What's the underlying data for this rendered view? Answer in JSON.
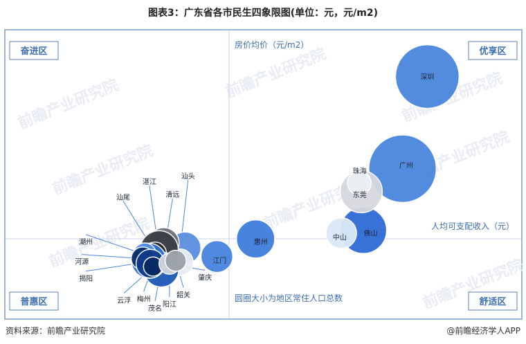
{
  "title": "图表3：广东省各市民生四象限图(单位：元，元/m2)",
  "source": "资料来源：前瞻产业研究院",
  "brand": "@前瞻经济学人APP",
  "watermark": "前瞻产业研究院",
  "chart_data": {
    "type": "scatter",
    "subtype": "bubble-quadrant",
    "x_axis_label": "人均可支配收入（元）",
    "y_axis_label": "房价均价（元/m2）",
    "size_note": "圆圈大小为地区常住人口总数",
    "quadrant_labels": {
      "top_left": "奋进区",
      "top_right": "优享区",
      "bottom_left": "普惠区",
      "bottom_right": "舒适区"
    },
    "grid": false,
    "colors": {
      "frame": "#5a82bd",
      "divider": "#c9d5e6",
      "label_text": "#3f6fb0",
      "bubble_blue": "#4a86dd"
    },
    "points": [
      {
        "city": "深圳",
        "x": 0.818,
        "y": 0.84,
        "size": 1.0,
        "color": "#4a86dd"
      },
      {
        "city": "广州",
        "x": 0.77,
        "y": 0.52,
        "size": 1.06,
        "color": "#4a86dd"
      },
      {
        "city": "佛山",
        "x": 0.694,
        "y": 0.306,
        "size": 0.73,
        "color": "#2e6bd6"
      },
      {
        "city": "东莞",
        "x": 0.69,
        "y": 0.44,
        "size": 0.66,
        "color": "#d6d9de"
      },
      {
        "city": "珠海",
        "x": 0.686,
        "y": 0.47,
        "size": 0.37,
        "color": "#eceff3"
      },
      {
        "city": "中山",
        "x": 0.651,
        "y": 0.296,
        "size": 0.48,
        "color": "#dde8f7"
      },
      {
        "city": "惠州",
        "x": 0.485,
        "y": 0.276,
        "size": 0.6,
        "color": "#3f7ddc"
      },
      {
        "city": "江门",
        "x": 0.41,
        "y": 0.215,
        "size": 0.5,
        "color": "#4684df"
      },
      {
        "city": "汕头",
        "x": 0.348,
        "y": 0.245,
        "size": 0.5,
        "color": "#5c8fe0"
      },
      {
        "city": "肇庆",
        "x": 0.338,
        "y": 0.195,
        "size": 0.42,
        "color": "#e9edf2"
      },
      {
        "city": "清远",
        "x": 0.307,
        "y": 0.262,
        "size": 0.48,
        "color": "#6e7178"
      },
      {
        "city": "湛江",
        "x": 0.298,
        "y": 0.238,
        "size": 0.6,
        "color": "#3c3f45"
      },
      {
        "city": "汕尾",
        "x": 0.29,
        "y": 0.225,
        "size": 0.36,
        "color": "#23262c"
      },
      {
        "city": "茂名",
        "x": 0.302,
        "y": 0.17,
        "size": 0.55,
        "color": "#1e58b5"
      },
      {
        "city": "揭阳",
        "x": 0.278,
        "y": 0.2,
        "size": 0.55,
        "color": "#2f70d6"
      },
      {
        "city": "潮州",
        "x": 0.27,
        "y": 0.222,
        "size": 0.36,
        "color": "#5590e5"
      },
      {
        "city": "河源",
        "x": 0.266,
        "y": 0.208,
        "size": 0.36,
        "color": "#0a2e6c"
      },
      {
        "city": "梅州",
        "x": 0.281,
        "y": 0.19,
        "size": 0.45,
        "color": "#0f3b89"
      },
      {
        "city": "云浮",
        "x": 0.286,
        "y": 0.18,
        "size": 0.3,
        "color": "#0a2a63"
      },
      {
        "city": "阳江",
        "x": 0.318,
        "y": 0.19,
        "size": 0.33,
        "color": "#cfd5de"
      },
      {
        "city": "韶关",
        "x": 0.33,
        "y": 0.2,
        "size": 0.33,
        "color": "#9aa1ab"
      }
    ],
    "labels": [
      {
        "city": "深圳",
        "x": 0.818,
        "y": 0.84,
        "inside": true
      },
      {
        "city": "广州",
        "x": 0.777,
        "y": 0.532,
        "inside": true
      },
      {
        "city": "佛山",
        "x": 0.708,
        "y": 0.297,
        "inside": true
      },
      {
        "city": "东莞",
        "x": 0.687,
        "y": 0.43,
        "inside": true
      },
      {
        "city": "珠海",
        "x": 0.687,
        "y": 0.513,
        "inside": true
      },
      {
        "city": "中山",
        "x": 0.648,
        "y": 0.283,
        "inside": true
      },
      {
        "city": "惠州",
        "x": 0.495,
        "y": 0.267,
        "inside": true
      },
      {
        "city": "江门",
        "x": 0.415,
        "y": 0.202,
        "inside": true
      },
      {
        "city": "汕头",
        "x": 0.354,
        "y": 0.495,
        "px": 0.34,
        "py": 0.26
      },
      {
        "city": "湛江",
        "x": 0.279,
        "y": 0.476,
        "px": 0.296,
        "py": 0.25
      },
      {
        "city": "清远",
        "x": 0.324,
        "y": 0.431,
        "px": 0.31,
        "py": 0.26
      },
      {
        "city": "汕尾",
        "x": 0.228,
        "y": 0.422,
        "px": 0.288,
        "py": 0.235
      },
      {
        "city": "潮州",
        "x": 0.156,
        "y": 0.267,
        "px": 0.265,
        "py": 0.225
      },
      {
        "city": "河源",
        "x": 0.148,
        "y": 0.198,
        "px": 0.262,
        "py": 0.208
      },
      {
        "city": "揭阳",
        "x": 0.156,
        "y": 0.14,
        "px": 0.27,
        "py": 0.195
      },
      {
        "city": "云浮",
        "x": 0.23,
        "y": 0.064,
        "px": 0.283,
        "py": 0.172
      },
      {
        "city": "梅州",
        "x": 0.268,
        "y": 0.069,
        "px": 0.284,
        "py": 0.175
      },
      {
        "city": "茂名",
        "x": 0.29,
        "y": 0.036,
        "px": 0.3,
        "py": 0.155
      },
      {
        "city": "阳江",
        "x": 0.318,
        "y": 0.05,
        "px": 0.318,
        "py": 0.168
      },
      {
        "city": "韶关",
        "x": 0.345,
        "y": 0.083,
        "px": 0.333,
        "py": 0.183
      },
      {
        "city": "肇庆",
        "x": 0.387,
        "y": 0.143,
        "px": 0.345,
        "py": 0.18
      }
    ]
  }
}
